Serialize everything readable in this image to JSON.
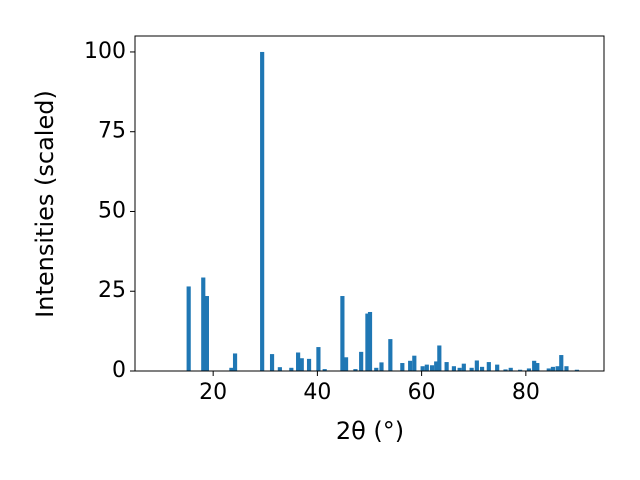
{
  "chart_data": {
    "type": "bar",
    "x": [
      15.3,
      18.1,
      18.8,
      23.5,
      24.2,
      29.4,
      31.3,
      32.8,
      35.0,
      36.3,
      37.0,
      38.4,
      40.2,
      41.4,
      44.8,
      45.5,
      47.3,
      48.4,
      49.6,
      50.1,
      51.3,
      52.3,
      54.0,
      56.3,
      57.8,
      58.6,
      60.2,
      61.0,
      62.0,
      62.8,
      63.4,
      64.8,
      66.2,
      67.3,
      68.1,
      69.6,
      70.6,
      71.6,
      72.9,
      74.5,
      76.1,
      77.1,
      78.9,
      80.6,
      81.6,
      82.2,
      84.4,
      85.2,
      86.1,
      86.8,
      87.8,
      89.8
    ],
    "values": [
      26.5,
      29.3,
      23.5,
      1,
      5.5,
      100,
      5.3,
      1.2,
      1,
      5.8,
      4,
      3.8,
      7.5,
      0.6,
      23.5,
      4.3,
      0.6,
      6,
      18,
      18.5,
      1,
      2.7,
      10,
      2.5,
      3.2,
      4.8,
      1.5,
      2,
      1.8,
      3,
      8,
      2.8,
      1.5,
      1,
      2.3,
      1,
      3.3,
      1.3,
      2.8,
      2,
      0.5,
      1,
      0.4,
      0.8,
      3.2,
      2.5,
      0.8,
      1.3,
      1.5,
      5,
      1.5,
      0.4
    ],
    "color": "#1f77b4",
    "xlabel": "2θ (°)",
    "ylabel": "Intensities (scaled)",
    "xlim": [
      5,
      95
    ],
    "xticks": [
      20,
      40,
      60,
      80
    ],
    "ylim": [
      0,
      105
    ],
    "yticks": [
      0,
      25,
      50,
      75,
      100
    ],
    "grid": false
  }
}
